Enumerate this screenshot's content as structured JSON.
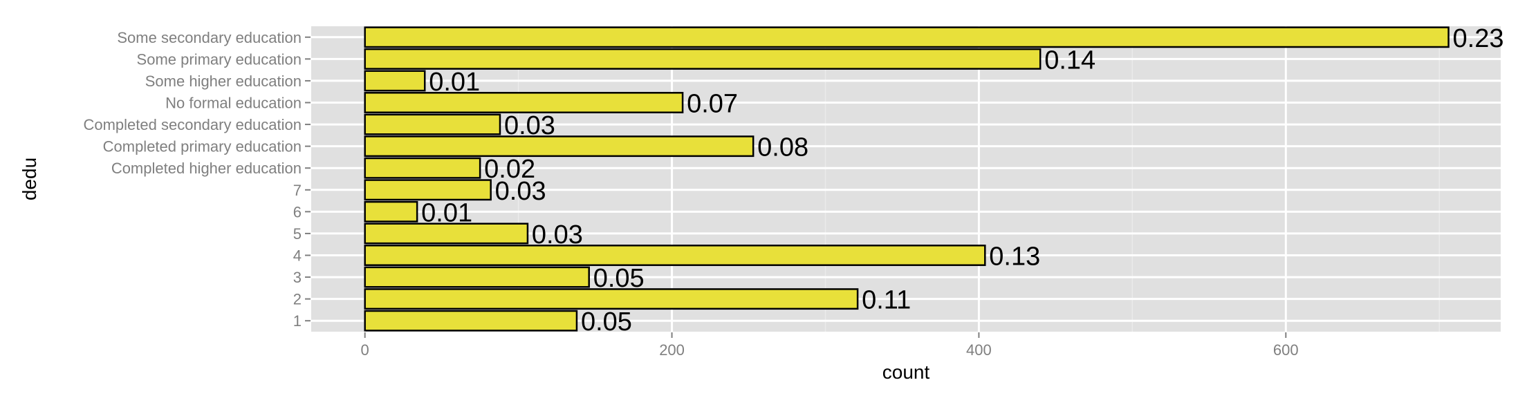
{
  "chart_data": {
    "type": "bar",
    "orientation": "horizontal",
    "title": "",
    "xlabel": "count",
    "ylabel": "dedu",
    "categories": [
      "Some secondary education",
      "Some primary education",
      "Some higher education",
      "No formal education",
      "Completed secondary education",
      "Completed primary education",
      "Completed higher education",
      "7",
      "6",
      "5",
      "4",
      "3",
      "2",
      "1"
    ],
    "values": [
      706,
      440,
      39,
      207,
      88,
      253,
      75,
      82,
      34,
      106,
      404,
      146,
      321,
      138
    ],
    "data_labels": [
      "0.23",
      "0.14",
      "0.01",
      "0.07",
      "0.03",
      "0.08",
      "0.02",
      "0.03",
      "0.01",
      "0.03",
      "0.13",
      "0.05",
      "0.11",
      "0.05"
    ],
    "xlim": [
      -35,
      740
    ],
    "x_ticks": [
      0,
      200,
      400,
      600
    ],
    "x_tick_labels": [
      "0",
      "200",
      "400",
      "600"
    ],
    "grid": true,
    "legend": "none",
    "colors": {
      "bar_fill": "#e8e03a",
      "bar_stroke": "#000000",
      "panel_background": "#e0e0e0",
      "grid_major": "#ffffff",
      "grid_minor": "#ebebeb",
      "tick_text": "#7f7f7f"
    }
  }
}
